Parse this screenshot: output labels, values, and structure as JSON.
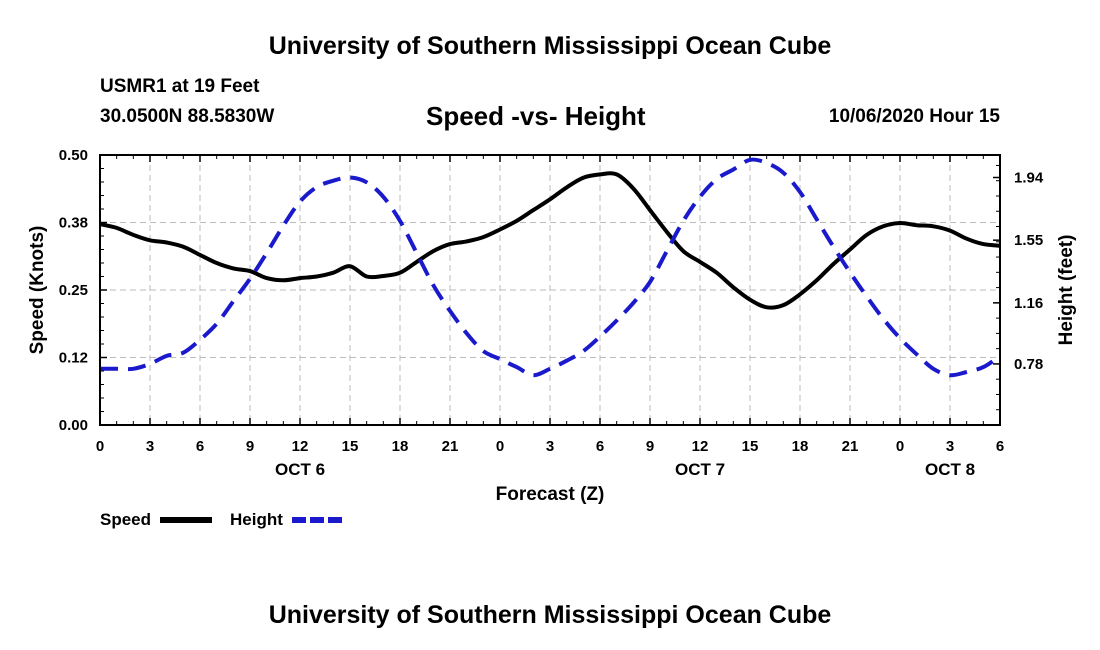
{
  "header": {
    "title": "University of Southern Mississippi Ocean Cube",
    "station": "USMR1 at 19 Feet",
    "coords": "30.0500N 88.5830W",
    "plot_title": "Speed -vs- Height",
    "timestamp": "10/06/2020 Hour 15"
  },
  "footer": {
    "title": "University of Southern Mississippi Ocean Cube"
  },
  "colors": {
    "speed": "#000000",
    "height": "#1a1acc",
    "grid": "#bbbbbb"
  },
  "chart_data": {
    "type": "line",
    "title": "Speed -vs- Height",
    "xlabel": "Forecast (Z)",
    "ylabel_left": "Speed (Knots)",
    "ylabel_right": "Height (feet)",
    "x_range_hours": [
      0,
      54
    ],
    "x_tick_labels": [
      "0",
      "3",
      "6",
      "9",
      "12",
      "15",
      "18",
      "21",
      "0",
      "3",
      "6",
      "9",
      "12",
      "15",
      "18",
      "21",
      "0",
      "3",
      "6"
    ],
    "x_tick_hours": [
      0,
      3,
      6,
      9,
      12,
      15,
      18,
      21,
      24,
      27,
      30,
      33,
      36,
      39,
      42,
      45,
      48,
      51,
      54
    ],
    "day_labels": [
      {
        "label": "OCT 6",
        "hour": 12
      },
      {
        "label": "OCT 7",
        "hour": 36
      },
      {
        "label": "OCT 8",
        "hour": 51
      }
    ],
    "y_left_range": [
      0,
      0.5
    ],
    "y_left_ticks": [
      0,
      0.125,
      0.25,
      0.375,
      0.5
    ],
    "y_left_tick_labels": [
      "0.00",
      "0.12",
      "0.25",
      "0.38",
      "0.50"
    ],
    "y_right_range": [
      0.4,
      2.08
    ],
    "y_right_ticks": [
      0.78,
      1.16,
      1.55,
      1.94
    ],
    "y_right_tick_labels": [
      "0.78",
      "1.16",
      "1.55",
      "1.94"
    ],
    "legend": [
      {
        "name": "Speed",
        "style": "solid"
      },
      {
        "name": "Height",
        "style": "dashed"
      }
    ],
    "series": [
      {
        "name": "Speed",
        "axis": "left",
        "x": [
          0,
          1,
          2,
          3,
          4,
          5,
          6,
          7,
          8,
          9,
          10,
          11,
          12,
          13,
          14,
          15,
          16,
          17,
          18,
          19,
          20,
          21,
          22,
          23,
          24,
          25,
          26,
          27,
          28,
          29,
          30,
          31,
          32,
          33,
          34,
          35,
          36,
          37,
          38,
          39,
          40,
          41,
          42,
          43,
          44,
          45,
          46,
          47,
          48,
          49,
          50,
          51,
          52,
          53,
          54
        ],
        "values": [
          0.372,
          0.365,
          0.352,
          0.342,
          0.338,
          0.33,
          0.315,
          0.3,
          0.29,
          0.285,
          0.272,
          0.268,
          0.272,
          0.275,
          0.282,
          0.294,
          0.275,
          0.276,
          0.282,
          0.302,
          0.322,
          0.335,
          0.34,
          0.348,
          0.362,
          0.378,
          0.398,
          0.418,
          0.44,
          0.458,
          0.464,
          0.464,
          0.438,
          0.398,
          0.358,
          0.322,
          0.302,
          0.282,
          0.255,
          0.232,
          0.218,
          0.222,
          0.242,
          0.268,
          0.298,
          0.325,
          0.352,
          0.368,
          0.374,
          0.37,
          0.368,
          0.36,
          0.345,
          0.335,
          0.332
        ]
      },
      {
        "name": "Height",
        "axis": "right",
        "x": [
          0,
          1,
          2,
          3,
          4,
          5,
          6,
          7,
          8,
          9,
          10,
          11,
          12,
          13,
          14,
          15,
          16,
          17,
          18,
          19,
          20,
          21,
          22,
          23,
          24,
          25,
          26,
          27,
          28,
          29,
          30,
          31,
          32,
          33,
          34,
          35,
          36,
          37,
          38,
          39,
          40,
          41,
          42,
          43,
          44,
          45,
          46,
          47,
          48,
          49,
          50,
          51,
          52,
          53,
          54
        ],
        "values": [
          0.75,
          0.75,
          0.75,
          0.78,
          0.83,
          0.85,
          0.93,
          1.03,
          1.17,
          1.31,
          1.47,
          1.64,
          1.79,
          1.88,
          1.92,
          1.94,
          1.91,
          1.82,
          1.67,
          1.47,
          1.27,
          1.11,
          0.97,
          0.86,
          0.81,
          0.76,
          0.71,
          0.75,
          0.8,
          0.86,
          0.95,
          1.05,
          1.16,
          1.29,
          1.48,
          1.67,
          1.82,
          1.93,
          1.99,
          2.05,
          2.03,
          1.97,
          1.85,
          1.68,
          1.51,
          1.35,
          1.2,
          1.06,
          0.94,
          0.84,
          0.75,
          0.71,
          0.73,
          0.76,
          0.83
        ]
      }
    ]
  }
}
